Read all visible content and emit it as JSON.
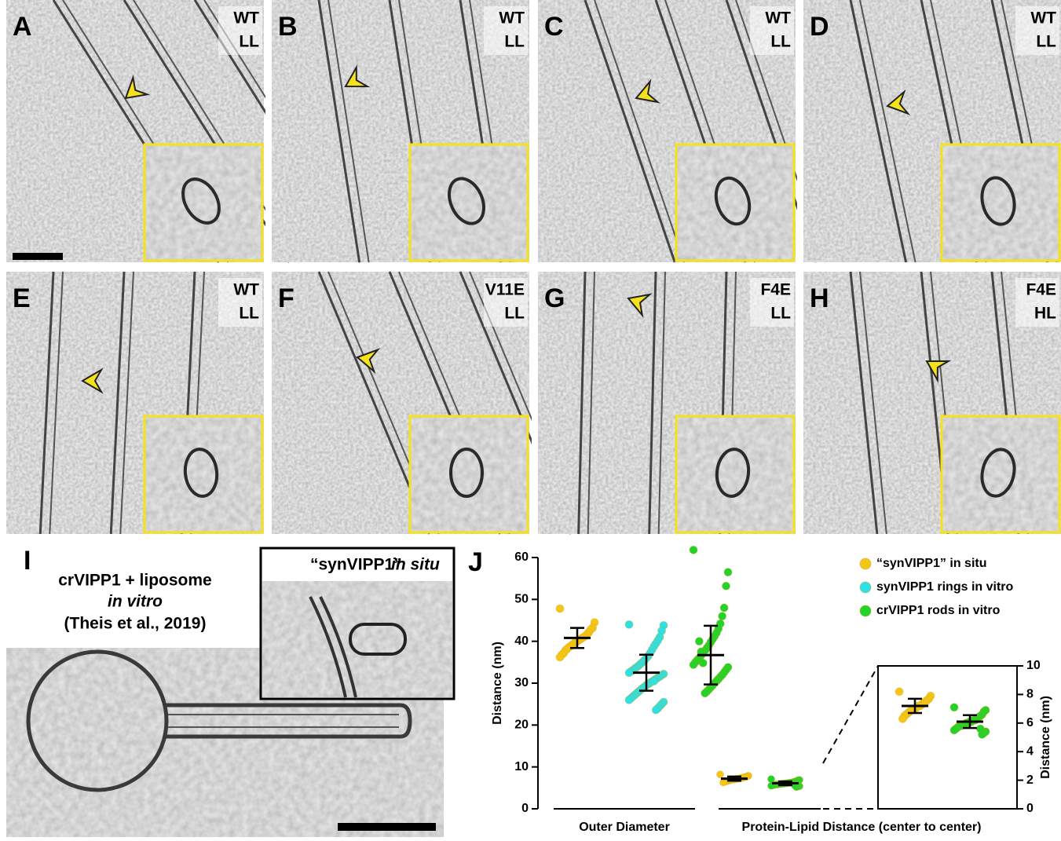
{
  "panels": [
    {
      "label": "A",
      "tags": [
        "WT",
        "LL"
      ]
    },
    {
      "label": "B",
      "tags": [
        "WT",
        "LL"
      ]
    },
    {
      "label": "C",
      "tags": [
        "WT",
        "LL"
      ]
    },
    {
      "label": "D",
      "tags": [
        "WT",
        "LL"
      ]
    },
    {
      "label": "E",
      "tags": [
        "WT",
        "LL"
      ]
    },
    {
      "label": "F",
      "tags": [
        "V11E",
        "LL"
      ]
    },
    {
      "label": "G",
      "tags": [
        "F4E",
        "LL"
      ]
    },
    {
      "label": "H",
      "tags": [
        "F4E",
        "HL"
      ]
    }
  ],
  "panel_i": {
    "label": "I",
    "title_lines": [
      "crVIPP1 + liposome",
      "in vitro",
      "(Theis et al., 2019)"
    ],
    "inset_name": "“synVIPP1”",
    "inset_qualifier": "in situ"
  },
  "chart_data": {
    "type": "strip",
    "label": "J",
    "ylabel": "Distance (nm)",
    "groups": [
      "Outer Diameter",
      "Protein-Lipid Distance (center to center)"
    ],
    "ylim": [
      0,
      60
    ],
    "yticks": [
      0,
      10,
      20,
      30,
      40,
      50,
      60
    ],
    "y2label": "Distance (nm)",
    "y2lim": [
      0,
      10
    ],
    "y2ticks": [
      0,
      2,
      4,
      6,
      8,
      10
    ],
    "series": [
      {
        "name": "“synVIPP1” in situ",
        "color": "#f5c518",
        "outer_diameter": {
          "values": [
            47.8,
            44.5,
            43.2,
            42.8,
            42.1,
            41.6,
            41.2,
            40.9,
            40.6,
            40.3,
            40.0,
            39.8,
            39.4,
            39.0,
            38.7,
            38.3,
            37.9,
            37.2,
            36.8,
            36.2
          ],
          "mean": 40.8,
          "sd": 2.4
        },
        "protein_lipid": {
          "values": [
            8.2,
            7.9,
            7.7,
            7.6,
            7.5,
            7.4,
            7.3,
            7.2,
            7.2,
            7.1,
            7.0,
            7.0,
            6.9,
            6.8,
            6.7,
            6.6,
            6.5,
            6.3
          ],
          "mean": 7.2,
          "sd": 0.5
        }
      },
      {
        "name": "synVIPP1 rings in vitro",
        "color": "#2ee0e8",
        "outer_diameter": {
          "values": [
            44.0,
            43.8,
            42.5,
            41.0,
            40.2,
            39.5,
            38.8,
            38.0,
            37.2,
            36.5,
            36.0,
            35.5,
            35.0,
            34.6,
            34.2,
            33.8,
            33.5,
            33.1,
            32.8,
            32.5,
            32.2,
            31.9,
            31.6,
            31.3,
            31.0,
            30.7,
            30.4,
            30.1,
            29.8,
            29.5,
            29.1,
            28.8,
            28.4,
            28.0,
            27.6,
            27.2,
            26.8,
            26.4,
            26.0,
            25.5,
            25.0,
            24.5,
            24.0,
            23.6,
            30.5
          ],
          "mean": 32.5,
          "sd": 4.3
        }
      },
      {
        "name": "crVIPP1 rods in vitro",
        "color": "#22d32a",
        "outer_diameter": {
          "values": [
            61.8,
            56.5,
            53.2,
            48.0,
            46.0,
            44.2,
            43.0,
            42.0,
            41.2,
            40.5,
            39.8,
            39.0,
            38.4,
            37.8,
            37.2,
            36.6,
            36.0,
            35.5,
            35.0,
            34.4,
            33.8,
            33.2,
            32.6,
            32.0,
            31.5,
            31.0,
            30.5,
            30.0,
            29.5,
            29.0,
            28.5,
            28.0,
            27.6,
            34.8,
            37.5,
            40.0
          ],
          "mean": 36.7,
          "sd": 7.0
        },
        "protein_lipid": {
          "values": [
            7.1,
            6.9,
            6.8,
            6.6,
            6.5,
            6.4,
            6.3,
            6.2,
            6.2,
            6.1,
            6.1,
            6.0,
            6.0,
            5.9,
            5.9,
            5.8,
            5.8,
            5.7,
            5.6,
            5.5,
            5.4,
            5.3,
            5.2,
            5.6
          ],
          "mean": 6.1,
          "sd": 0.45
        }
      }
    ]
  }
}
